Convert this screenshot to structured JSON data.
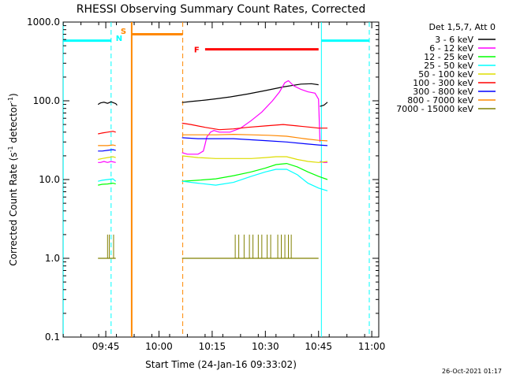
{
  "chart_data": {
    "type": "line",
    "title": "RHESSI Observing Summary Count Rates, Corrected",
    "xlabel": "Start Time (24-Jan-16 09:33:02)",
    "ylabel_prefix": "Corrected Count Rate (s",
    "ylabel_sup": "-1",
    "ylabel_suffix": " detector",
    "ylabel_end": ")",
    "y_scale": "log",
    "ylim": [
      0.1,
      1000
    ],
    "y_ticks": [
      {
        "value": 0.1,
        "label": "0.1"
      },
      {
        "value": 1,
        "label": "1.0"
      },
      {
        "value": 10,
        "label": "10.0"
      },
      {
        "value": 100,
        "label": "100.0"
      },
      {
        "value": 1000,
        "label": "1000.0"
      }
    ],
    "xlim_minutes": [
      -0.03,
      88.97
    ],
    "x_ticks": [
      {
        "minute": 12,
        "label": "09:45"
      },
      {
        "minute": 27,
        "label": "10:00"
      },
      {
        "minute": 42,
        "label": "10:15"
      },
      {
        "minute": 57,
        "label": "10:30"
      },
      {
        "minute": 72,
        "label": "10:45"
      },
      {
        "minute": 87,
        "label": "11:00"
      }
    ],
    "legend_header": "Det 1,5,7, Att 0",
    "legend_placement": "right",
    "series": [
      {
        "name": "3 - 6 keV",
        "color": "#000000",
        "segments": [
          [
            [
              9.8,
              90
            ],
            [
              10.5,
              94
            ],
            [
              11.5,
              96
            ],
            [
              12.5,
              93
            ],
            [
              13.5,
              97
            ],
            [
              14.8,
              92
            ],
            [
              15.2,
              88
            ]
          ],
          [
            [
              33.5,
              95
            ],
            [
              36,
              98
            ],
            [
              40,
              102
            ],
            [
              43,
              106
            ],
            [
              47,
              112
            ],
            [
              52,
              122
            ],
            [
              57,
              135
            ],
            [
              62,
              150
            ],
            [
              67,
              163
            ],
            [
              70,
              165
            ],
            [
              72,
              160
            ]
          ],
          [
            [
              72.4,
              85
            ],
            [
              73.5,
              88
            ],
            [
              74.5,
              96
            ]
          ]
        ]
      },
      {
        "name": "6 - 12 keV",
        "color": "#ff00ff",
        "segments": [
          [
            [
              9.8,
              16.5
            ],
            [
              10.5,
              16.5
            ],
            [
              11.5,
              17
            ],
            [
              12.5,
              16.5
            ],
            [
              13.5,
              17
            ],
            [
              14.8,
              16.5
            ]
          ],
          [
            [
              33.5,
              22
            ],
            [
              35,
              21
            ],
            [
              38,
              21
            ],
            [
              39.5,
              23
            ],
            [
              40,
              28
            ],
            [
              40.5,
              35
            ],
            [
              41,
              37
            ],
            [
              41.5,
              40
            ],
            [
              42.5,
              42
            ],
            [
              44,
              40
            ],
            [
              47,
              40
            ],
            [
              50,
              45
            ],
            [
              53,
              56
            ],
            [
              56,
              72
            ],
            [
              59,
              100
            ],
            [
              61,
              130
            ],
            [
              62.5,
              170
            ],
            [
              63.5,
              180
            ],
            [
              65,
              155
            ],
            [
              67,
              140
            ],
            [
              69,
              130
            ],
            [
              71,
              125
            ],
            [
              72,
              105
            ],
            [
              72.4,
              30
            ]
          ],
          [
            [
              72.4,
              17
            ],
            [
              73.5,
              16.5
            ],
            [
              74.5,
              16.5
            ]
          ]
        ]
      },
      {
        "name": "12 - 25 keV",
        "color": "#00ff00",
        "segments": [
          [
            [
              9.8,
              8.5
            ],
            [
              11,
              8.7
            ],
            [
              12.5,
              8.8
            ],
            [
              14,
              9
            ],
            [
              14.8,
              8.8
            ]
          ],
          [
            [
              33.5,
              9.5
            ],
            [
              38,
              9.8
            ],
            [
              43,
              10.2
            ],
            [
              48,
              11.2
            ],
            [
              53,
              12.5
            ],
            [
              57,
              14
            ],
            [
              60,
              15.5
            ],
            [
              63,
              16
            ],
            [
              66,
              14.5
            ],
            [
              69,
              12.5
            ],
            [
              72,
              11
            ],
            [
              74.5,
              10
            ]
          ]
        ]
      },
      {
        "name": "25 - 50 keV",
        "color": "#00ffff",
        "segments": [
          [
            [
              9.8,
              9.5
            ],
            [
              11,
              9.8
            ],
            [
              12.5,
              10
            ],
            [
              14,
              10.2
            ],
            [
              14.8,
              9.5
            ]
          ],
          [
            [
              33.5,
              9.5
            ],
            [
              38,
              9
            ],
            [
              43,
              8.5
            ],
            [
              48,
              9.2
            ],
            [
              53,
              11
            ],
            [
              57,
              12.5
            ],
            [
              60,
              13.5
            ],
            [
              63,
              13.5
            ],
            [
              66,
              11.5
            ],
            [
              69,
              9
            ],
            [
              72,
              7.8
            ],
            [
              74.5,
              7.2
            ]
          ]
        ]
      },
      {
        "name": "50 - 100 keV",
        "color": "#dddd00",
        "segments": [
          [
            [
              9.8,
              18
            ],
            [
              11,
              18.5
            ],
            [
              12.5,
              19
            ],
            [
              14,
              19.5
            ],
            [
              14.8,
              19
            ]
          ],
          [
            [
              33.5,
              20
            ],
            [
              38,
              19
            ],
            [
              43,
              18.5
            ],
            [
              48,
              18.5
            ],
            [
              53,
              18.5
            ],
            [
              57,
              19
            ],
            [
              60,
              19.5
            ],
            [
              63,
              19.5
            ],
            [
              66,
              18
            ],
            [
              69,
              17
            ],
            [
              72,
              16.5
            ],
            [
              74.5,
              17
            ]
          ]
        ]
      },
      {
        "name": "100 - 300 keV",
        "color": "#ff0000",
        "segments": [
          [
            [
              9.8,
              38
            ],
            [
              11,
              39
            ],
            [
              12.5,
              40
            ],
            [
              14,
              41
            ],
            [
              14.8,
              40
            ]
          ],
          [
            [
              33.5,
              52
            ],
            [
              36,
              50
            ],
            [
              40,
              46
            ],
            [
              44,
              43
            ],
            [
              48,
              44
            ],
            [
              52,
              46
            ],
            [
              57,
              48
            ],
            [
              62,
              50
            ],
            [
              66,
              48
            ],
            [
              70,
              46
            ],
            [
              72,
              45
            ],
            [
              74.5,
              45
            ]
          ]
        ]
      },
      {
        "name": "300 - 800 keV",
        "color": "#0000ff",
        "segments": [
          [
            [
              9.8,
              23
            ],
            [
              11,
              23
            ],
            [
              12.5,
              23.5
            ],
            [
              14,
              24
            ],
            [
              14.8,
              23.5
            ]
          ],
          [
            [
              33.5,
              34
            ],
            [
              38,
              33
            ],
            [
              43,
              33
            ],
            [
              48,
              33
            ],
            [
              53,
              32
            ],
            [
              58,
              31
            ],
            [
              63,
              30
            ],
            [
              68,
              28.5
            ],
            [
              72,
              27.5
            ],
            [
              74.5,
              27
            ]
          ]
        ]
      },
      {
        "name": "800 - 7000 keV",
        "color": "#ff8800",
        "segments": [
          [
            [
              9.8,
              27
            ],
            [
              11,
              27
            ],
            [
              12.5,
              27
            ],
            [
              14,
              27.5
            ],
            [
              14.8,
              27
            ]
          ],
          [
            [
              33.5,
              37
            ],
            [
              38,
              37
            ],
            [
              43,
              37
            ],
            [
              48,
              37.5
            ],
            [
              53,
              37
            ],
            [
              58,
              36.5
            ],
            [
              63,
              35.5
            ],
            [
              68,
              33
            ],
            [
              72,
              31.5
            ],
            [
              74.5,
              31
            ]
          ]
        ]
      },
      {
        "name": "7000 - 15000 keV",
        "color": "#808000",
        "segments": [
          [
            [
              9.8,
              1
            ],
            [
              12.5,
              1
            ],
            [
              14.8,
              1
            ]
          ],
          [
            [
              33.5,
              1
            ],
            [
              48,
              1
            ],
            [
              52,
              1
            ],
            [
              56,
              1
            ],
            [
              60,
              1
            ],
            [
              64,
              1
            ],
            [
              66,
              1
            ],
            [
              72,
              1
            ]
          ]
        ],
        "spikes": [
          [
            12.5,
            2
          ],
          [
            13,
            2
          ],
          [
            14.2,
            2
          ],
          [
            48.5,
            2
          ],
          [
            49.5,
            2
          ],
          [
            51,
            2
          ],
          [
            52.5,
            2
          ],
          [
            53.5,
            2
          ],
          [
            55,
            2
          ],
          [
            56,
            2
          ],
          [
            57.5,
            2
          ],
          [
            58.5,
            2
          ],
          [
            60.5,
            2
          ],
          [
            61.5,
            2
          ],
          [
            62.5,
            2
          ],
          [
            63.5,
            2
          ],
          [
            64.3,
            2
          ]
        ]
      }
    ],
    "saa_intervals": [
      {
        "label": "S",
        "label_color": "#ff8800",
        "color": "#ff8800",
        "start": 19.3,
        "end": 33.7,
        "level": 700
      }
    ],
    "night_intervals": [
      {
        "label": "N",
        "label_color": "#00ffff",
        "color": "#00ffff",
        "bars": [
          [
            0,
            13.5,
            580
          ],
          [
            72.8,
            86.3,
            580
          ]
        ],
        "starts": [
          13.5,
          86.3
        ],
        "ends": [
          0,
          72.8
        ]
      }
    ],
    "flare_intervals": [
      {
        "label": "F",
        "label_color": "#ff0000",
        "color": "#ff0000",
        "start": 40,
        "end": 72,
        "level": 450
      }
    ],
    "timestamp": "26-Oct-2021 01:17"
  }
}
